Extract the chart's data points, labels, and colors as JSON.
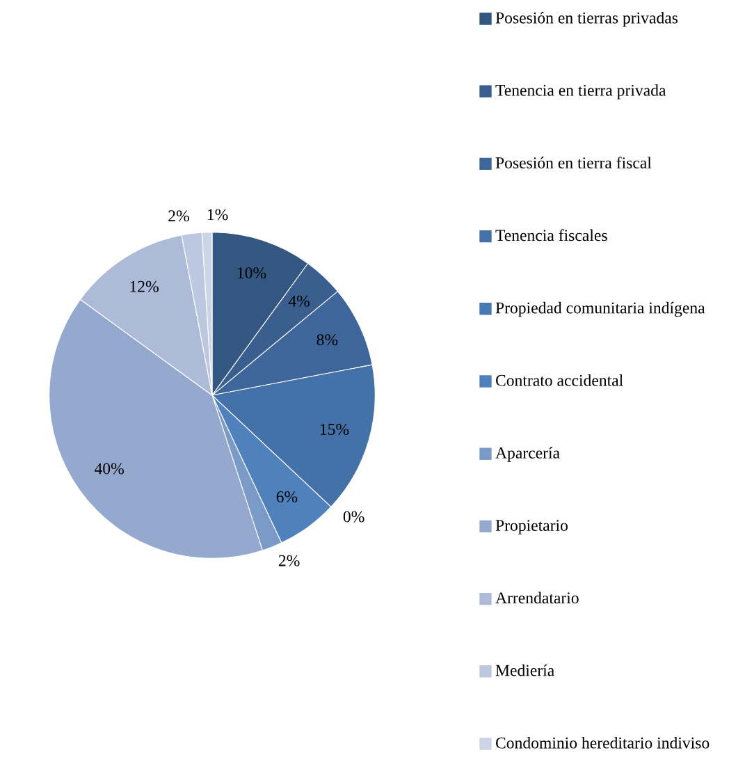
{
  "chart_data": {
    "type": "pie",
    "categories": [
      "Posesión en tierras privadas",
      "Tenencia en tierra privada",
      "Posesión en tierra fiscal",
      "Tenencia fiscales",
      "Propiedad comunitaria indígena",
      "Contrato accidental",
      "Aparcería",
      "Propietario",
      "Arrendatario",
      "Mediería",
      "Condominio hereditario indiviso"
    ],
    "values": [
      10,
      4,
      8,
      15,
      0,
      6,
      2,
      40,
      12,
      2,
      1
    ],
    "value_labels": [
      "10%",
      "4%",
      "8%",
      "15%",
      "0%",
      "6%",
      "2%",
      "40%",
      "12%",
      "2%",
      "1%"
    ],
    "colors": [
      "#335780",
      "#3a5f8e",
      "#3e669b",
      "#4472a8",
      "#4779b3",
      "#4f81bd",
      "#7a9ac7",
      "#95a9cf",
      "#adbbd8",
      "#bcc7e0",
      "#ccd5e8"
    ],
    "legend": "right"
  }
}
